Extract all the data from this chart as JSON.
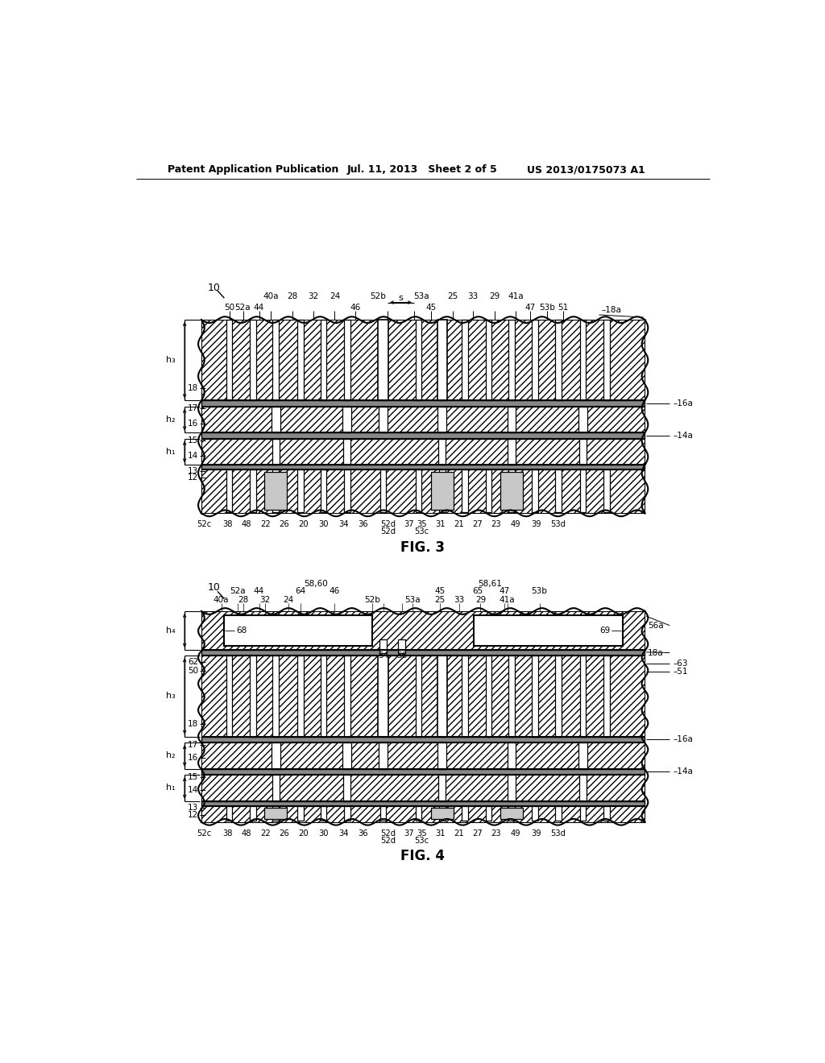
{
  "bg_color": "#ffffff",
  "header_left": "Patent Application Publication",
  "header_mid": "Jul. 11, 2013   Sheet 2 of 5",
  "header_right": "US 2013/0175073 A1",
  "fig3_label": "FIG. 3",
  "fig4_label": "FIG. 4"
}
